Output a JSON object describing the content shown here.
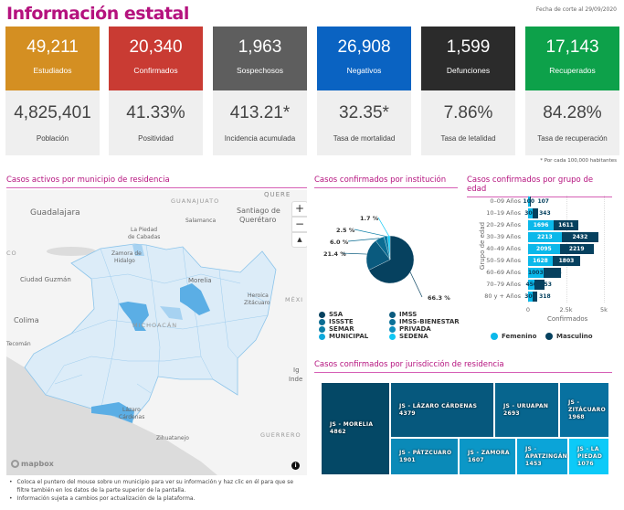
{
  "header": {
    "title": "Información estatal",
    "cutoff": "Fecha de corte al 29/09/2020",
    "footnote": "* Por cada 100,000 habitantes"
  },
  "cards": [
    {
      "value": "49,211",
      "label": "Estudiados",
      "color": "#d48f22",
      "stat": "4,825,401",
      "stat_label": "Población"
    },
    {
      "value": "20,340",
      "label": "Confirmados",
      "color": "#c93b33",
      "stat": "41.33%",
      "stat_label": "Positividad"
    },
    {
      "value": "1,963",
      "label": "Sospechosos",
      "color": "#5e5e5e",
      "stat": "413.21*",
      "stat_label": "Incidencia acumulada"
    },
    {
      "value": "26,908",
      "label": "Negativos",
      "color": "#0a63c2",
      "stat": "32.35*",
      "stat_label": "Tasa de mortalidad"
    },
    {
      "value": "1,599",
      "label": "Defunciones",
      "color": "#2b2b2b",
      "stat": "7.86%",
      "stat_label": "Tasa de letalidad"
    },
    {
      "value": "17,143",
      "label": "Recuperados",
      "color": "#0da14a",
      "stat": "84.28%",
      "stat_label": "Tasa de recuperación"
    }
  ],
  "map": {
    "title": "Casos activos por municipio de residencia",
    "labels": [
      "GUANAJUATO",
      "Guadalajara",
      "Santiago de",
      "Querétaro",
      "Salamanca",
      "La Piedad",
      "de Cabadas",
      "Zamora de",
      "Hidalgo",
      "Ciudad Guzmán",
      "Morelia",
      "Heroica",
      "Zitácuaro",
      "MÉXI",
      "Colima",
      "MICHOACÁN",
      "Tecomán",
      "Lázaro",
      "Cárdenas",
      "Zihuatanejo",
      "GUERRERO",
      "QUERE",
      "CO",
      "Ig",
      "Inde"
    ],
    "zoom_in": "+",
    "zoom_out": "−",
    "compass": "▲",
    "attribution": "mapbox",
    "info": "i",
    "notes": [
      "Coloca el puntero del mouse sobre un municipio para ver su información y haz clic en él para que se filtre también en los datos de la parte superior de la pantalla.",
      "Información sujeta a cambios por actualización de la plataforma."
    ]
  },
  "institution": {
    "title": "Casos confirmados por institución",
    "chart_data": {
      "type": "pie",
      "slices": [
        {
          "name": "SSA",
          "value": 66.3,
          "label": "66.3 %",
          "color": "#06415f"
        },
        {
          "name": "IMSS",
          "value": 21.4,
          "label": "21.4 %",
          "color": "#0a5a7e"
        },
        {
          "name": "ISSSTE",
          "value": 6.0,
          "label": "6.0 %",
          "color": "#0b6c92"
        },
        {
          "name": "SEMAR",
          "value": 2.5,
          "label": "2.5 %",
          "color": "#0c7ea6"
        },
        {
          "name": "SEDENA",
          "value": 1.7,
          "label": "1.7 %",
          "color": "#0ec8f5"
        }
      ]
    },
    "legend": [
      {
        "name": "SSA",
        "color": "#06415f"
      },
      {
        "name": "IMSS",
        "color": "#0a5a7e"
      },
      {
        "name": "ISSSTE",
        "color": "#0b6c92"
      },
      {
        "name": "IMSS-BIENESTAR",
        "color": "#0b7198"
      },
      {
        "name": "SEMAR",
        "color": "#0c7ea6"
      },
      {
        "name": "PRIVADA",
        "color": "#0d8fbe"
      },
      {
        "name": "MUNICIPAL",
        "color": "#0ea9dc"
      },
      {
        "name": "SEDENA",
        "color": "#0ec8f5"
      }
    ]
  },
  "age": {
    "title": "Casos confirmados por grupo de edad",
    "chart_data": {
      "type": "bar",
      "orientation": "horizontal",
      "stacked": true,
      "categories": [
        "0–09 Años",
        "10–19 Años",
        "20–29 Años",
        "30–39 Años",
        "40–49 Años",
        "50–59 Años",
        "60–69 Años",
        "70–79 Años",
        "80 y + Años"
      ],
      "series": [
        {
          "name": "Femenino",
          "color": "#0bb8ea",
          "values": [
            100,
            300,
            1696,
            2213,
            2095,
            1628,
            1003,
            450,
            300
          ]
        },
        {
          "name": "Masculino",
          "color": "#06415f",
          "values": [
            107,
            343,
            1611,
            2432,
            2219,
            1803,
            1173,
            653,
            318
          ]
        }
      ],
      "xlabel": "Confirmados",
      "ylabel": "Grupo de edad",
      "xlim": [
        0,
        5000
      ],
      "xticks": [
        "0",
        "2.5k",
        "5k"
      ],
      "legend": "bottom"
    }
  },
  "jurisdiction": {
    "title": "Casos confirmados por jurisdicción de residencia",
    "chart_data": {
      "type": "treemap",
      "items": [
        {
          "name": "JS - MORELIA",
          "value": 4862,
          "color": "#044866"
        },
        {
          "name": "JS - LÁZARO CÁRDENAS",
          "value": 4379,
          "color": "#06587d"
        },
        {
          "name": "JS - URUAPAN",
          "value": 2693,
          "color": "#07658e"
        },
        {
          "name": "JS - ZITÁCUARO",
          "value": 1968,
          "color": "#0871a0"
        },
        {
          "name": "JS - PÁTZCUARO",
          "value": 1901,
          "color": "#0a8ab8"
        },
        {
          "name": "JS - ZAMORA",
          "value": 1607,
          "color": "#0b97c7"
        },
        {
          "name": "JS - APATZINGÁN",
          "value": 1453,
          "color": "#0ba4d8"
        },
        {
          "name": "JS - LA PIEDAD",
          "value": 1076,
          "color": "#0ccaf8"
        }
      ]
    }
  }
}
